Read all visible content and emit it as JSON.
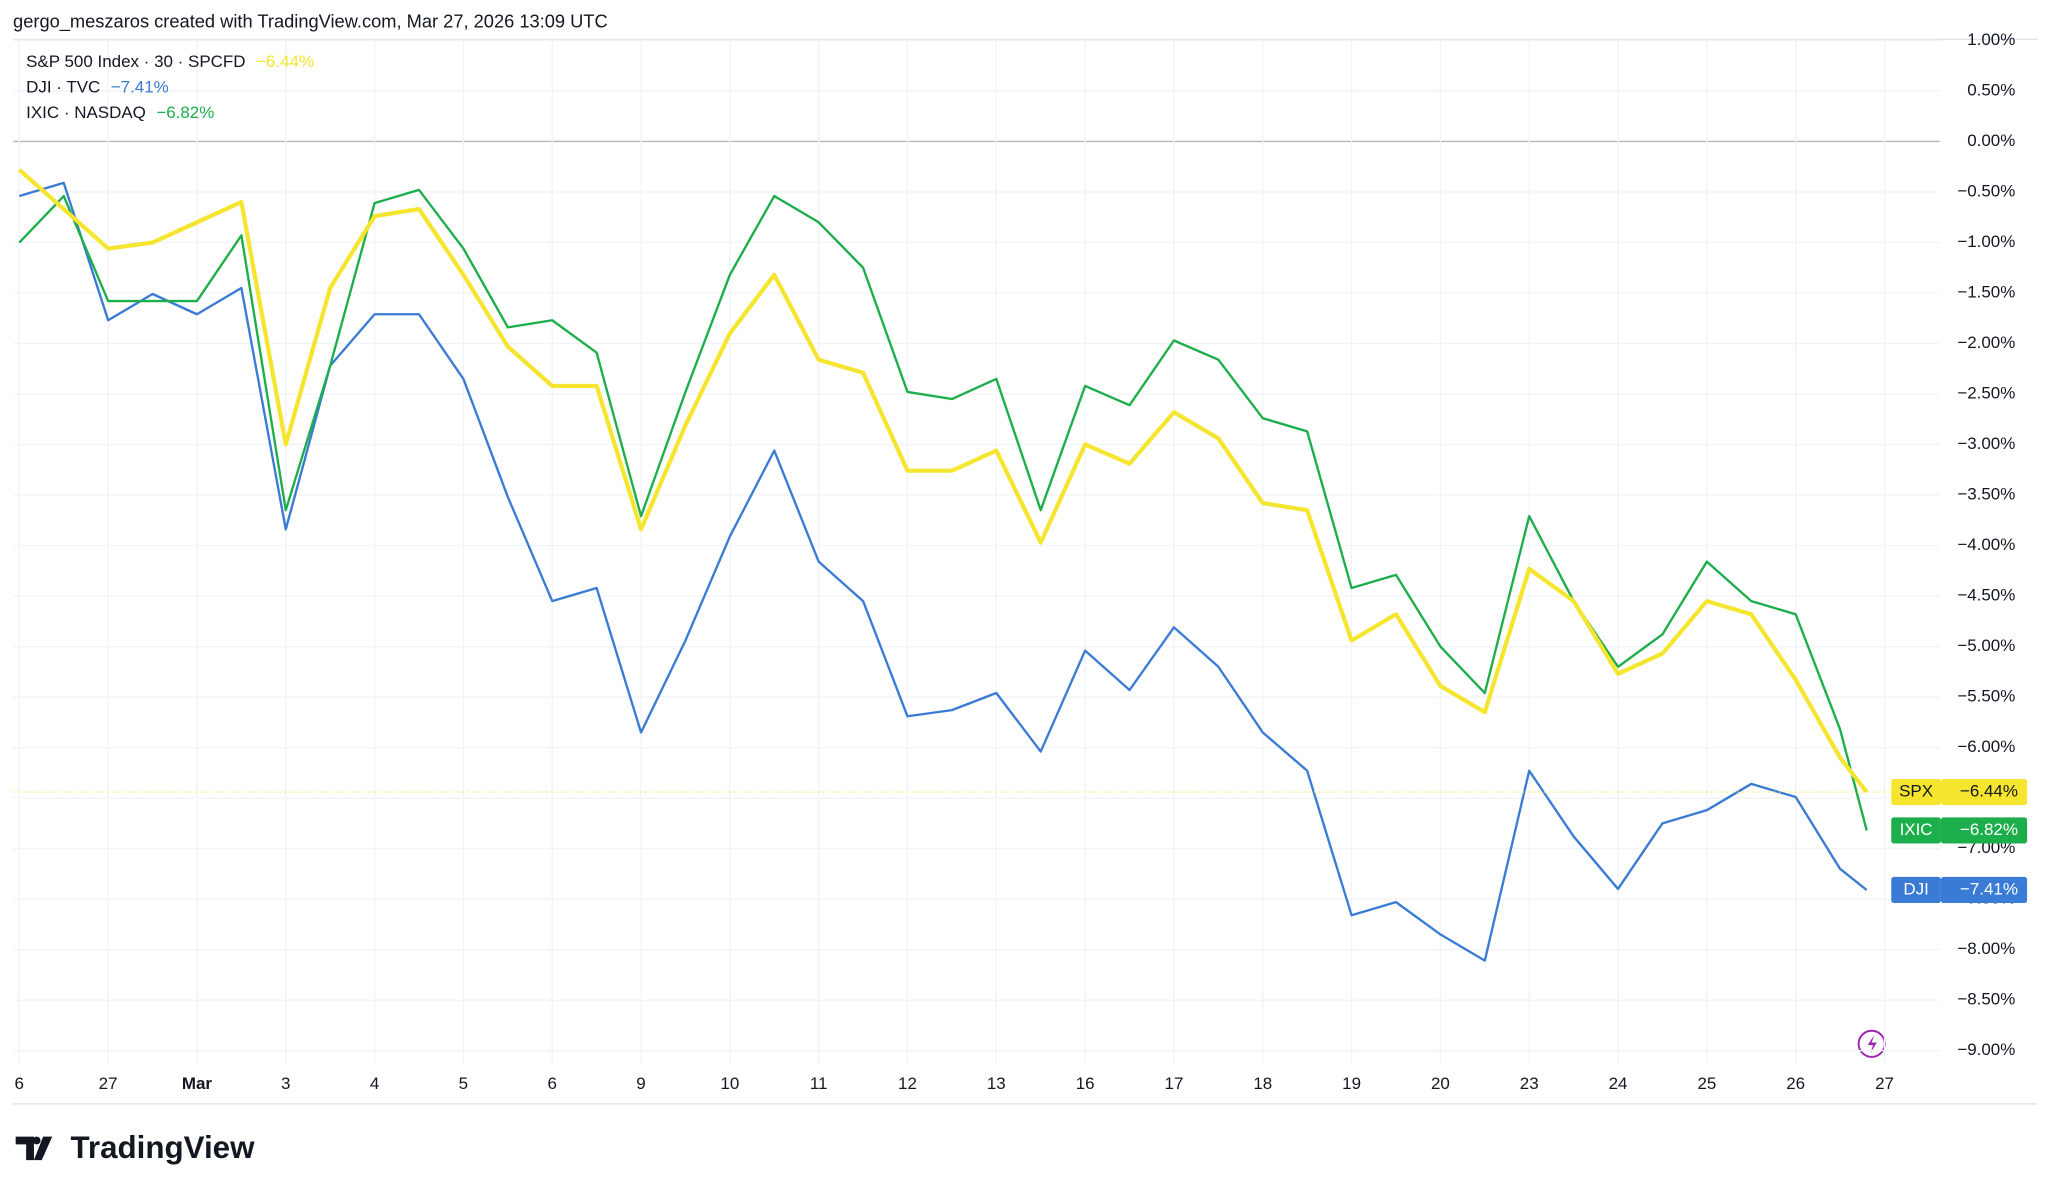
{
  "header": {
    "text": "gergo_meszaros created with TradingView.com, Mar 27, 2026 13:09 UTC"
  },
  "footer": {
    "logo_text": "TradingView"
  },
  "chart_data": {
    "type": "line",
    "x": [
      0,
      0.5,
      1,
      1.5,
      2,
      2.5,
      3,
      3.5,
      4,
      4.5,
      5,
      5.5,
      6,
      6.5,
      7,
      7.5,
      8,
      8.5,
      9,
      9.5,
      10,
      10.5,
      11,
      11.5,
      12,
      12.5,
      13,
      13.5,
      14,
      14.5,
      15,
      15.5,
      16,
      16.5,
      17,
      17.5,
      18,
      18.5,
      19,
      19.5,
      20,
      20.5,
      20.8
    ],
    "series": [
      {
        "name": "S&P 500 Index · 30 · SPCFD",
        "ticker": "SPX",
        "last_label": "−6.44%",
        "color": "#f5e52f",
        "width": 3.2,
        "values": [
          -0.28,
          -0.67,
          -1.06,
          -1.0,
          -0.8,
          -0.6,
          -3.0,
          -1.45,
          -0.74,
          -0.67,
          -1.32,
          -2.03,
          -2.42,
          -2.42,
          -3.84,
          -2.81,
          -1.9,
          -1.32,
          -2.16,
          -2.29,
          -3.26,
          -3.26,
          -3.06,
          -3.97,
          -3.0,
          -3.19,
          -2.68,
          -2.94,
          -3.58,
          -3.65,
          -4.94,
          -4.68,
          -5.39,
          -5.65,
          -4.23,
          -4.55,
          -5.27,
          -5.07,
          -4.55,
          -4.68,
          -5.33,
          -6.1,
          -6.44
        ]
      },
      {
        "name": "DJI · TVC",
        "ticker": "DJI",
        "last_label": "−7.41%",
        "color": "#3a7bd5",
        "width": 1.8,
        "values": [
          -0.54,
          -0.41,
          -1.77,
          -1.51,
          -1.71,
          -1.45,
          -3.84,
          -2.22,
          -1.71,
          -1.71,
          -2.35,
          -3.52,
          -4.55,
          -4.42,
          -5.85,
          -4.94,
          -3.91,
          -3.06,
          -4.16,
          -4.55,
          -5.69,
          -5.63,
          -5.46,
          -6.04,
          -5.04,
          -5.43,
          -4.81,
          -5.2,
          -5.85,
          -6.23,
          -7.66,
          -7.53,
          -7.85,
          -8.11,
          -6.23,
          -6.88,
          -7.4,
          -6.75,
          -6.62,
          -6.36,
          -6.49,
          -7.2,
          -7.41
        ]
      },
      {
        "name": "IXIC · NASDAQ",
        "ticker": "IXIC",
        "last_label": "−6.82%",
        "color": "#1cae4a",
        "width": 1.8,
        "values": [
          -1.0,
          -0.54,
          -1.58,
          -1.58,
          -1.58,
          -0.93,
          -3.65,
          -2.22,
          -0.61,
          -0.48,
          -1.06,
          -1.84,
          -1.77,
          -2.09,
          -3.71,
          -2.48,
          -1.32,
          -0.54,
          -0.8,
          -1.25,
          -2.48,
          -2.55,
          -2.35,
          -3.65,
          -2.42,
          -2.61,
          -1.97,
          -2.16,
          -2.74,
          -2.87,
          -4.42,
          -4.29,
          -5.0,
          -5.46,
          -3.71,
          -4.55,
          -5.2,
          -4.88,
          -4.16,
          -4.55,
          -4.68,
          -5.82,
          -6.82
        ]
      }
    ],
    "xlim": [
      -0.07,
      21.62
    ],
    "xticks": [
      {
        "value": 0,
        "label": "6"
      },
      {
        "value": 1,
        "label": "27"
      },
      {
        "value": 2,
        "label": "Mar"
      },
      {
        "value": 3,
        "label": "3"
      },
      {
        "value": 4,
        "label": "4"
      },
      {
        "value": 5,
        "label": "5"
      },
      {
        "value": 6,
        "label": "6"
      },
      {
        "value": 7,
        "label": "9"
      },
      {
        "value": 8,
        "label": "10"
      },
      {
        "value": 9,
        "label": "11"
      },
      {
        "value": 10,
        "label": "12"
      },
      {
        "value": 11,
        "label": "13"
      },
      {
        "value": 12,
        "label": "16"
      },
      {
        "value": 13,
        "label": "17"
      },
      {
        "value": 14,
        "label": "18"
      },
      {
        "value": 15,
        "label": "19"
      },
      {
        "value": 16,
        "label": "20"
      },
      {
        "value": 17,
        "label": "23"
      },
      {
        "value": 18,
        "label": "24"
      },
      {
        "value": 19,
        "label": "25"
      },
      {
        "value": 20,
        "label": "26"
      },
      {
        "value": 21,
        "label": "27"
      }
    ],
    "ylim": [
      -9.14,
      1.01
    ],
    "yticks": [
      {
        "value": 1,
        "label": "1.00%"
      },
      {
        "value": 0.5,
        "label": "0.50%"
      },
      {
        "value": 0,
        "label": "0.00%"
      },
      {
        "value": -0.5,
        "label": "−0.50%"
      },
      {
        "value": -1,
        "label": "−1.00%"
      },
      {
        "value": -1.5,
        "label": "−1.50%"
      },
      {
        "value": -2,
        "label": "−2.00%"
      },
      {
        "value": -2.5,
        "label": "−2.50%"
      },
      {
        "value": -3,
        "label": "−3.00%"
      },
      {
        "value": -3.5,
        "label": "−3.50%"
      },
      {
        "value": -4,
        "label": "−4.00%"
      },
      {
        "value": -4.5,
        "label": "−4.50%"
      },
      {
        "value": -5,
        "label": "−5.00%"
      },
      {
        "value": -5.5,
        "label": "−5.50%"
      },
      {
        "value": -6,
        "label": "−6.00%"
      },
      {
        "value": -6.5,
        "label": "−6.50%"
      },
      {
        "value": -7,
        "label": "−7.00%"
      },
      {
        "value": -7.5,
        "label": "−7.50%"
      },
      {
        "value": -8,
        "label": "−8.00%"
      },
      {
        "value": -8.5,
        "label": "−8.50%"
      },
      {
        "value": -9,
        "label": "−9.00%"
      }
    ],
    "grid": true
  }
}
